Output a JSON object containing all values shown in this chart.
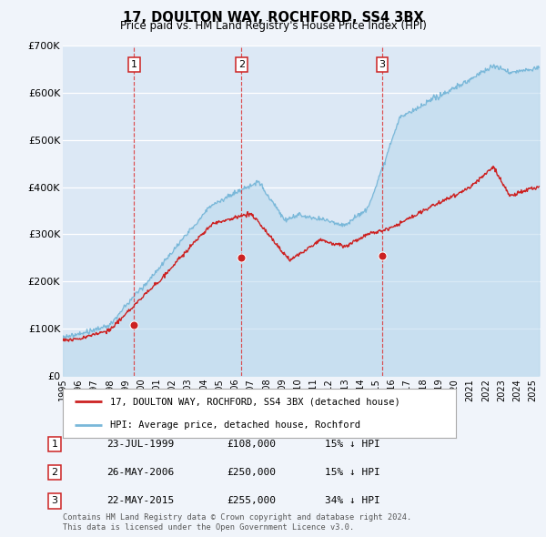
{
  "title": "17, DOULTON WAY, ROCHFORD, SS4 3BX",
  "subtitle": "Price paid vs. HM Land Registry's House Price Index (HPI)",
  "ytick_values": [
    0,
    100000,
    200000,
    300000,
    400000,
    500000,
    600000,
    700000
  ],
  "ytick_labels": [
    "£0",
    "£100K",
    "£200K",
    "£300K",
    "£400K",
    "£500K",
    "£600K",
    "£700K"
  ],
  "background_color": "#f0f4fa",
  "plot_bg_color": "#dce8f5",
  "grid_color": "#c8d8ea",
  "hpi_color": "#7ab8d9",
  "hpi_fill_color": "#b8d8ed",
  "price_color": "#cc2222",
  "vline_color": "#dd3333",
  "sales": [
    {
      "label": "1",
      "date_x": 1999.55,
      "price": 108000
    },
    {
      "label": "2",
      "date_x": 2006.4,
      "price": 250000
    },
    {
      "label": "3",
      "date_x": 2015.39,
      "price": 255000
    }
  ],
  "table_rows": [
    {
      "label": "1",
      "date_str": "23-JUL-1999",
      "price_str": "£108,000",
      "pct_str": "15% ↓ HPI"
    },
    {
      "label": "2",
      "date_str": "26-MAY-2006",
      "price_str": "£250,000",
      "pct_str": "15% ↓ HPI"
    },
    {
      "label": "3",
      "date_str": "22-MAY-2015",
      "price_str": "£255,000",
      "pct_str": "34% ↓ HPI"
    }
  ],
  "legend_label_price": "17, DOULTON WAY, ROCHFORD, SS4 3BX (detached house)",
  "legend_label_hpi": "HPI: Average price, detached house, Rochford",
  "footnote_line1": "Contains HM Land Registry data © Crown copyright and database right 2024.",
  "footnote_line2": "This data is licensed under the Open Government Licence v3.0.",
  "xlim_start": 1995.0,
  "xlim_end": 2025.5
}
